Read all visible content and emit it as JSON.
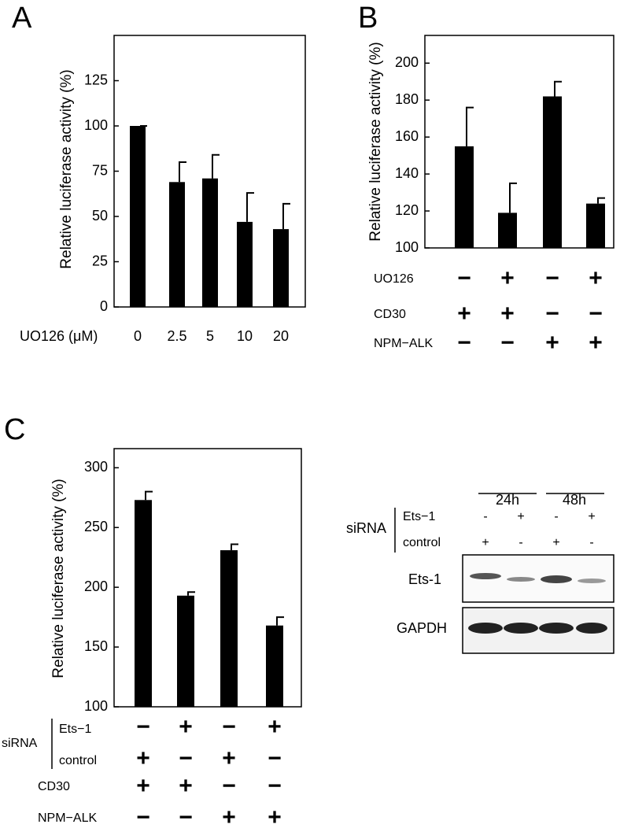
{
  "chart_data": [
    {
      "type": "bar",
      "panel": "A",
      "y_label": "Relative luciferase activity (%)",
      "x_label": "UO126 (μM)",
      "categories": [
        "0",
        "2.5",
        "5",
        "10",
        "20"
      ],
      "values": [
        100,
        69,
        71,
        47,
        43
      ],
      "errors": [
        0,
        11,
        13,
        16,
        14
      ],
      "color": "#000000",
      "ylim": [
        0,
        150
      ],
      "yticks": [
        0,
        25,
        50,
        75,
        100,
        125
      ]
    },
    {
      "type": "bar",
      "panel": "B",
      "y_label": "Relative luciferase activity (%)",
      "values": [
        155,
        119,
        182,
        124
      ],
      "errors": [
        21,
        16,
        8,
        3
      ],
      "color": "#000000",
      "ylim": [
        100,
        215
      ],
      "yticks": [
        100,
        120,
        140,
        160,
        180,
        200
      ],
      "conditions": [
        {
          "label": "UO126",
          "signs": [
            "−",
            "+",
            "−",
            "+"
          ]
        },
        {
          "label": "CD30",
          "signs": [
            "+",
            "+",
            "−",
            "−"
          ]
        },
        {
          "label": "NPM−ALK",
          "signs": [
            "−",
            "−",
            "+",
            "+"
          ]
        }
      ]
    },
    {
      "type": "bar",
      "panel": "C",
      "y_label": "Relative luciferase activity (%)",
      "values": [
        273,
        193,
        231,
        168
      ],
      "errors": [
        7,
        3,
        5,
        7
      ],
      "color": "#000000",
      "ylim": [
        100,
        316
      ],
      "yticks": [
        100,
        150,
        200,
        250,
        300
      ],
      "condition_group": "siRNA",
      "conditions": [
        {
          "label": "Ets−1",
          "signs": [
            "−",
            "+",
            "−",
            "+"
          ]
        },
        {
          "label": "control",
          "signs": [
            "+",
            "−",
            "+",
            "−"
          ]
        },
        {
          "label": "CD30",
          "signs": [
            "+",
            "+",
            "−",
            "−"
          ]
        },
        {
          "label": "NPM−ALK",
          "signs": [
            "−",
            "−",
            "+",
            "+"
          ]
        }
      ]
    }
  ],
  "blot": {
    "times": [
      "24h",
      "48h"
    ],
    "group": "siRNA",
    "rows": [
      {
        "label": "Ets−1",
        "signs": [
          "-",
          "+",
          "-",
          "+"
        ]
      },
      {
        "label": "control",
        "signs": [
          "+",
          "-",
          "+",
          "-"
        ]
      }
    ],
    "bands": [
      "Ets-1",
      "GAPDH"
    ]
  }
}
